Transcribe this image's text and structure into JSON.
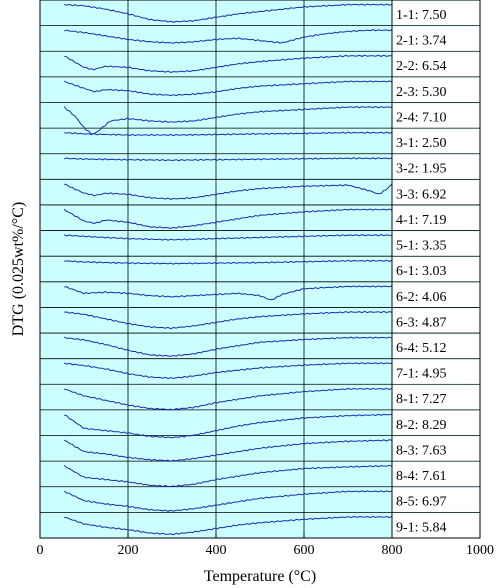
{
  "chart_data": {
    "type": "line",
    "xlabel": "Temperature (°C)",
    "ylabel": "DTG (0.025wt%/°C)",
    "xlim": [
      0,
      1000
    ],
    "x_ticks": [
      "0",
      "200",
      "400",
      "600",
      "800",
      "1000"
    ],
    "grid": true,
    "background_color": "#ccffff",
    "line_color": "#1a2ab0",
    "series": [
      {
        "name": "1-1: 7.50",
        "x": [
          55,
          100,
          150,
          200,
          250,
          300,
          350,
          400,
          450,
          500,
          550,
          600,
          650,
          700,
          750,
          800
        ],
        "values": [
          0.0,
          -0.05,
          -0.2,
          -0.4,
          -0.65,
          -0.75,
          -0.7,
          -0.55,
          -0.4,
          -0.3,
          -0.2,
          -0.1,
          -0.05,
          0.0,
          0.0,
          0.0
        ]
      },
      {
        "name": "2-1: 3.74",
        "x": [
          55,
          100,
          150,
          200,
          250,
          300,
          350,
          400,
          450,
          500,
          550,
          600,
          650,
          700,
          750,
          800
        ],
        "values": [
          0.0,
          -0.1,
          -0.25,
          -0.4,
          -0.5,
          -0.55,
          -0.5,
          -0.4,
          -0.35,
          -0.45,
          -0.55,
          -0.3,
          -0.15,
          -0.05,
          0.0,
          0.0
        ]
      },
      {
        "name": "2-2: 6.54",
        "x": [
          55,
          100,
          120,
          150,
          200,
          250,
          300,
          350,
          400,
          450,
          500,
          600,
          700,
          800
        ],
        "values": [
          0.0,
          -0.5,
          -0.6,
          -0.45,
          -0.5,
          -0.65,
          -0.7,
          -0.65,
          -0.5,
          -0.35,
          -0.25,
          -0.1,
          0.0,
          0.0
        ]
      },
      {
        "name": "2-3: 5.30",
        "x": [
          55,
          100,
          125,
          150,
          200,
          250,
          300,
          350,
          400,
          450,
          500,
          600,
          700,
          800
        ],
        "values": [
          0.0,
          -0.3,
          -0.45,
          -0.35,
          -0.4,
          -0.55,
          -0.6,
          -0.55,
          -0.45,
          -0.3,
          -0.2,
          -0.1,
          0.0,
          0.0
        ]
      },
      {
        "name": "2-4: 7.10",
        "x": [
          55,
          80,
          100,
          120,
          135,
          160,
          200,
          250,
          300,
          350,
          400,
          450,
          500,
          600,
          700,
          800
        ],
        "values": [
          0.0,
          -0.4,
          -0.9,
          -1.2,
          -1.0,
          -0.6,
          -0.5,
          -0.6,
          -0.65,
          -0.6,
          -0.45,
          -0.3,
          -0.2,
          -0.1,
          0.0,
          0.0
        ]
      },
      {
        "name": "3-1: 2.50",
        "x": [
          55,
          100,
          200,
          300,
          400,
          500,
          600,
          700,
          800
        ],
        "values": [
          0.0,
          -0.05,
          -0.1,
          -0.1,
          -0.08,
          -0.05,
          -0.03,
          0.0,
          0.0
        ]
      },
      {
        "name": "3-2: 1.95",
        "x": [
          55,
          100,
          200,
          300,
          400,
          500,
          600,
          700,
          800
        ],
        "values": [
          0.0,
          -0.03,
          -0.06,
          -0.08,
          -0.06,
          -0.04,
          -0.02,
          0.0,
          0.0
        ]
      },
      {
        "name": "3-3: 6.92",
        "x": [
          55,
          100,
          125,
          150,
          200,
          250,
          300,
          350,
          400,
          450,
          500,
          600,
          700,
          750,
          770,
          790,
          800
        ],
        "values": [
          0.0,
          -0.4,
          -0.5,
          -0.4,
          -0.45,
          -0.6,
          -0.65,
          -0.6,
          -0.45,
          -0.3,
          -0.2,
          -0.1,
          -0.05,
          -0.3,
          -0.45,
          -0.2,
          0.0
        ]
      },
      {
        "name": "4-1: 7.19",
        "x": [
          55,
          100,
          125,
          150,
          200,
          250,
          300,
          350,
          400,
          450,
          500,
          600,
          700,
          800
        ],
        "values": [
          0.0,
          -0.5,
          -0.6,
          -0.45,
          -0.55,
          -0.75,
          -0.8,
          -0.7,
          -0.55,
          -0.4,
          -0.25,
          -0.1,
          0.0,
          0.0
        ]
      },
      {
        "name": "5-1: 3.35",
        "x": [
          55,
          100,
          200,
          300,
          400,
          500,
          600,
          700,
          800
        ],
        "values": [
          0.0,
          -0.05,
          -0.15,
          -0.2,
          -0.15,
          -0.1,
          -0.05,
          0.0,
          0.0
        ]
      },
      {
        "name": "6-1: 3.03",
        "x": [
          55,
          100,
          200,
          300,
          400,
          500,
          600,
          700,
          800
        ],
        "values": [
          0.0,
          -0.05,
          -0.1,
          -0.12,
          -0.1,
          -0.08,
          -0.04,
          0.0,
          0.0
        ]
      },
      {
        "name": "6-2: 4.06",
        "x": [
          55,
          100,
          150,
          200,
          250,
          300,
          350,
          400,
          450,
          500,
          525,
          550,
          600,
          700,
          800
        ],
        "values": [
          0.0,
          -0.3,
          -0.25,
          -0.3,
          -0.4,
          -0.45,
          -0.4,
          -0.35,
          -0.3,
          -0.4,
          -0.6,
          -0.35,
          -0.1,
          0.0,
          0.0
        ]
      },
      {
        "name": "6-3: 4.87",
        "x": [
          55,
          100,
          150,
          200,
          250,
          300,
          350,
          400,
          450,
          500,
          600,
          700,
          800
        ],
        "values": [
          0.0,
          -0.1,
          -0.3,
          -0.5,
          -0.65,
          -0.7,
          -0.6,
          -0.45,
          -0.3,
          -0.2,
          -0.08,
          0.0,
          0.0
        ]
      },
      {
        "name": "6-4: 5.12",
        "x": [
          55,
          100,
          150,
          200,
          250,
          300,
          350,
          400,
          450,
          500,
          600,
          700,
          800
        ],
        "values": [
          0.0,
          -0.1,
          -0.3,
          -0.55,
          -0.75,
          -0.8,
          -0.7,
          -0.5,
          -0.35,
          -0.2,
          -0.08,
          0.0,
          0.0
        ]
      },
      {
        "name": "7-1: 4.95",
        "x": [
          55,
          100,
          150,
          200,
          250,
          300,
          350,
          400,
          450,
          500,
          600,
          700,
          800
        ],
        "values": [
          0.0,
          -0.1,
          -0.25,
          -0.45,
          -0.6,
          -0.65,
          -0.55,
          -0.4,
          -0.3,
          -0.2,
          -0.08,
          0.0,
          0.0
        ]
      },
      {
        "name": "8-1: 7.27",
        "x": [
          55,
          100,
          150,
          200,
          250,
          300,
          350,
          400,
          450,
          500,
          600,
          700,
          800
        ],
        "values": [
          0.0,
          -0.3,
          -0.5,
          -0.7,
          -0.85,
          -0.9,
          -0.8,
          -0.6,
          -0.45,
          -0.3,
          -0.12,
          0.0,
          0.0
        ]
      },
      {
        "name": "8-2: 8.29",
        "x": [
          55,
          100,
          150,
          200,
          250,
          300,
          350,
          400,
          450,
          500,
          600,
          700,
          800
        ],
        "values": [
          0.0,
          -0.6,
          -0.7,
          -0.8,
          -0.95,
          -1.0,
          -0.9,
          -0.7,
          -0.5,
          -0.35,
          -0.15,
          -0.05,
          0.0
        ]
      },
      {
        "name": "8-3: 7.63",
        "x": [
          55,
          100,
          150,
          200,
          250,
          300,
          350,
          400,
          450,
          500,
          600,
          700,
          800
        ],
        "values": [
          0.0,
          -0.5,
          -0.6,
          -0.75,
          -0.85,
          -0.9,
          -0.8,
          -0.65,
          -0.5,
          -0.35,
          -0.15,
          -0.05,
          0.0
        ]
      },
      {
        "name": "8-4: 7.61",
        "x": [
          55,
          100,
          150,
          200,
          250,
          300,
          350,
          400,
          450,
          500,
          600,
          700,
          800
        ],
        "values": [
          0.0,
          -0.5,
          -0.6,
          -0.7,
          -0.85,
          -0.9,
          -0.8,
          -0.6,
          -0.45,
          -0.3,
          -0.12,
          -0.05,
          0.0
        ]
      },
      {
        "name": "8-5: 6.97",
        "x": [
          55,
          100,
          150,
          200,
          250,
          300,
          350,
          400,
          450,
          500,
          600,
          700,
          800
        ],
        "values": [
          0.0,
          -0.4,
          -0.55,
          -0.65,
          -0.8,
          -0.85,
          -0.75,
          -0.6,
          -0.45,
          -0.3,
          -0.12,
          0.0,
          0.0
        ]
      },
      {
        "name": "9-1: 5.84",
        "x": [
          55,
          100,
          150,
          200,
          250,
          300,
          350,
          400,
          450,
          500,
          600,
          700,
          800
        ],
        "values": [
          0.0,
          -0.3,
          -0.45,
          -0.55,
          -0.7,
          -0.75,
          -0.65,
          -0.5,
          -0.35,
          -0.25,
          -0.1,
          0.0,
          0.0
        ]
      }
    ]
  }
}
